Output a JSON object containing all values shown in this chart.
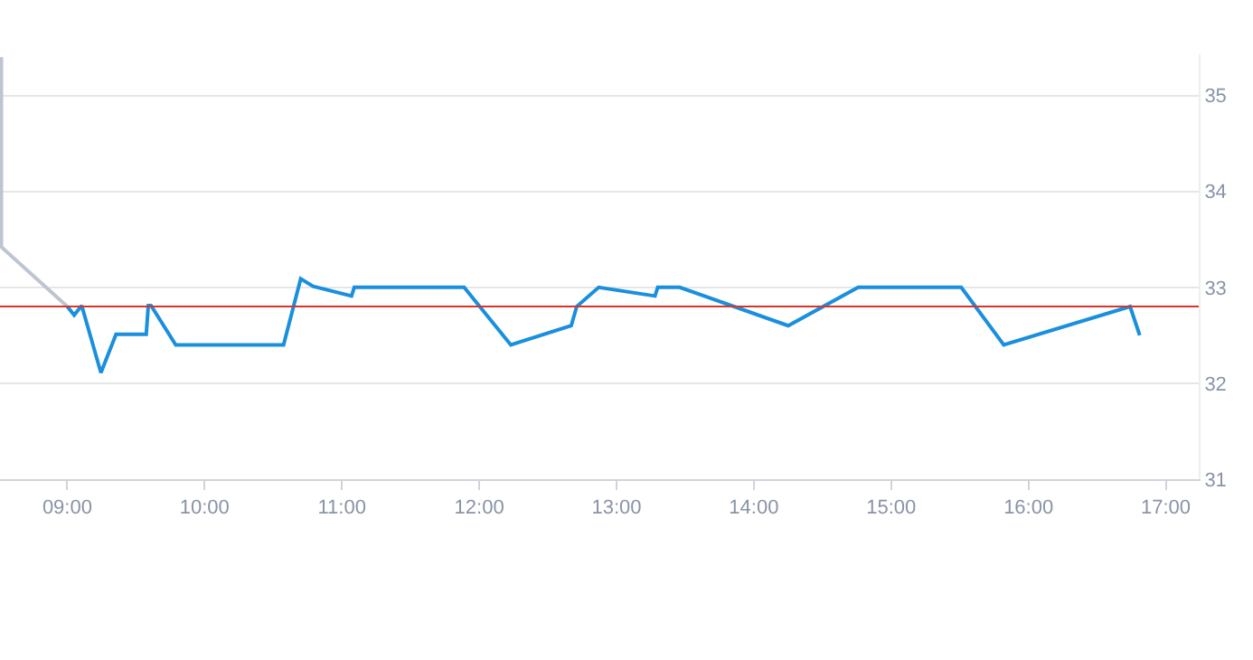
{
  "chart_data": {
    "type": "line",
    "series": [
      {
        "color": "#bcc5d0",
        "x": [
          8.52,
          8.52,
          9.0
        ],
        "values": [
          35.4,
          33.42,
          32.8
        ]
      },
      {
        "color": "#1a8fdd",
        "x": [
          9.0,
          9.05,
          9.105,
          9.245,
          9.355,
          9.575,
          9.59,
          9.61,
          9.79,
          10.575,
          10.7,
          10.79,
          11.07,
          11.09,
          11.89,
          12.23,
          12.67,
          12.71,
          12.87,
          13.28,
          13.3,
          13.46,
          14.25,
          14.76,
          15.51,
          15.82,
          16.74,
          16.81
        ],
        "values": [
          32.8,
          32.71,
          32.81,
          32.11,
          32.51,
          32.51,
          32.81,
          32.81,
          32.4,
          32.4,
          33.09,
          33.01,
          32.91,
          33.0,
          33.0,
          32.4,
          32.6,
          32.8,
          33.0,
          32.91,
          33.0,
          33.0,
          32.6,
          33.0,
          33.0,
          32.4,
          32.8,
          32.5
        ]
      }
    ],
    "ref_lines": [
      {
        "axis": "y",
        "value": 32.8,
        "color": "#d9342b"
      }
    ],
    "xlim": [
      8.51,
      17.24
    ],
    "xticks": [
      {
        "value": 9,
        "label": "09:00"
      },
      {
        "value": 10,
        "label": "10:00"
      },
      {
        "value": 11,
        "label": "11:00"
      },
      {
        "value": 12,
        "label": "12:00"
      },
      {
        "value": 13,
        "label": "13:00"
      },
      {
        "value": 14,
        "label": "14:00"
      },
      {
        "value": 15,
        "label": "15:00"
      },
      {
        "value": 16,
        "label": "16:00"
      },
      {
        "value": 17,
        "label": "17:00"
      }
    ],
    "ylim": [
      31,
      35.43
    ],
    "yticks": [
      31,
      32,
      33,
      34,
      35
    ],
    "grid": "y",
    "line_style": "solid"
  }
}
